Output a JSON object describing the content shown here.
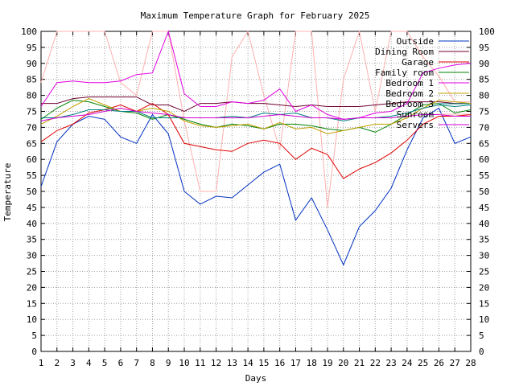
{
  "chart_data": {
    "type": "line",
    "title": "Maximum Temperature Graph for February 2025",
    "xlabel": "Days",
    "ylabel": "Temperature",
    "xlim": [
      1,
      28
    ],
    "ylim": [
      0,
      100
    ],
    "x_ticks": [
      "1",
      "2",
      "3",
      "4",
      "5",
      "6",
      "7",
      "8",
      "9",
      "10",
      "11",
      "12",
      "13",
      "14",
      "15",
      "16",
      "17",
      "18",
      "19",
      "20",
      "21",
      "22",
      "23",
      "24",
      "25",
      "26",
      "27",
      "28"
    ],
    "y_ticks": [
      "0",
      "5",
      "10",
      "15",
      "20",
      "25",
      "30",
      "35",
      "40",
      "45",
      "50",
      "55",
      "60",
      "65",
      "70",
      "75",
      "80",
      "85",
      "90",
      "95",
      "100"
    ],
    "grid": true,
    "legend_position": "top-right",
    "series": [
      {
        "name": "Outside",
        "color": "#0030c0",
        "values": [
          51.5,
          65.5,
          71,
          73.5,
          72.5,
          67,
          65,
          74,
          68,
          50,
          46,
          48.5,
          48,
          52,
          56,
          58.5,
          41,
          48,
          38,
          27,
          39,
          44,
          51,
          63,
          73,
          76,
          65,
          67
        ]
      },
      {
        "name": "Dining Room",
        "color": "#700030",
        "values": [
          77.5,
          77.5,
          79,
          79.5,
          79.5,
          79.5,
          79.5,
          77,
          77,
          75,
          77.5,
          77.5,
          78,
          77.5,
          77.5,
          77,
          76.5,
          77,
          76.5,
          76.5,
          76.5,
          77,
          77.5,
          78,
          78,
          78,
          77.5,
          77.5
        ]
      },
      {
        "name": "Garage",
        "color": "#e00000",
        "values": [
          65.5,
          69,
          71,
          74.5,
          75.5,
          77,
          75,
          77.5,
          74,
          65,
          64,
          63,
          62.5,
          65,
          66,
          65,
          60,
          63.5,
          61.5,
          54,
          57,
          59,
          62,
          66,
          71,
          73.5,
          73.5,
          74
        ]
      },
      {
        "name": "Family room",
        "color": "#008000",
        "values": [
          72.5,
          76,
          78.5,
          78,
          76.5,
          75,
          74.5,
          72.5,
          74,
          72.5,
          71,
          70,
          71,
          70.5,
          69.5,
          71,
          71,
          70.5,
          69.5,
          69,
          70,
          68.5,
          71,
          74,
          77,
          77.5,
          74.5,
          75.5
        ]
      },
      {
        "name": "Bedroom 1",
        "color": "#e000e0",
        "values": [
          76.5,
          84,
          84.5,
          84,
          84,
          84.5,
          86.5,
          87,
          100,
          80.5,
          76.5,
          76.5,
          78,
          77.5,
          78.5,
          82,
          75,
          77,
          74,
          72.5,
          73,
          74.5,
          75,
          77.5,
          87,
          88.5,
          89.5,
          90
        ]
      },
      {
        "name": "Bedroom 2",
        "color": "#c0a000",
        "values": [
          71,
          73.5,
          76.5,
          79,
          77,
          75,
          75,
          76,
          75,
          72,
          70.5,
          70,
          70.5,
          71,
          69.5,
          71.5,
          69.5,
          70,
          68,
          69,
          70,
          71,
          71,
          73,
          76,
          78.5,
          78,
          77.5
        ]
      },
      {
        "name": "Bedroom 3",
        "color": "#008080",
        "values": [
          73,
          73,
          74,
          75.5,
          75.5,
          75,
          75,
          73,
          73,
          73,
          73,
          73,
          73.5,
          73,
          74.5,
          74,
          74.5,
          73,
          73,
          72,
          73,
          73,
          73.5,
          74.5,
          76,
          77,
          76.5,
          77
        ]
      },
      {
        "name": "Sunroom",
        "color": "#ffb0b0",
        "values": [
          84,
          100,
          100,
          100,
          100,
          84,
          80,
          100,
          100,
          72,
          50,
          50,
          92,
          100,
          80,
          63,
          100,
          100,
          45,
          85,
          100,
          75,
          100,
          100,
          92,
          86,
          78,
          78
        ]
      },
      {
        "name": "Servers",
        "color": "#d000d0",
        "values": [
          72,
          73,
          73.5,
          74,
          75,
          76,
          75,
          74.5,
          74,
          73,
          73,
          73,
          73,
          73,
          73.5,
          74,
          73.5,
          73,
          73,
          72.5,
          73,
          73,
          73,
          73.5,
          74,
          74,
          73.5,
          73.5
        ]
      }
    ]
  }
}
